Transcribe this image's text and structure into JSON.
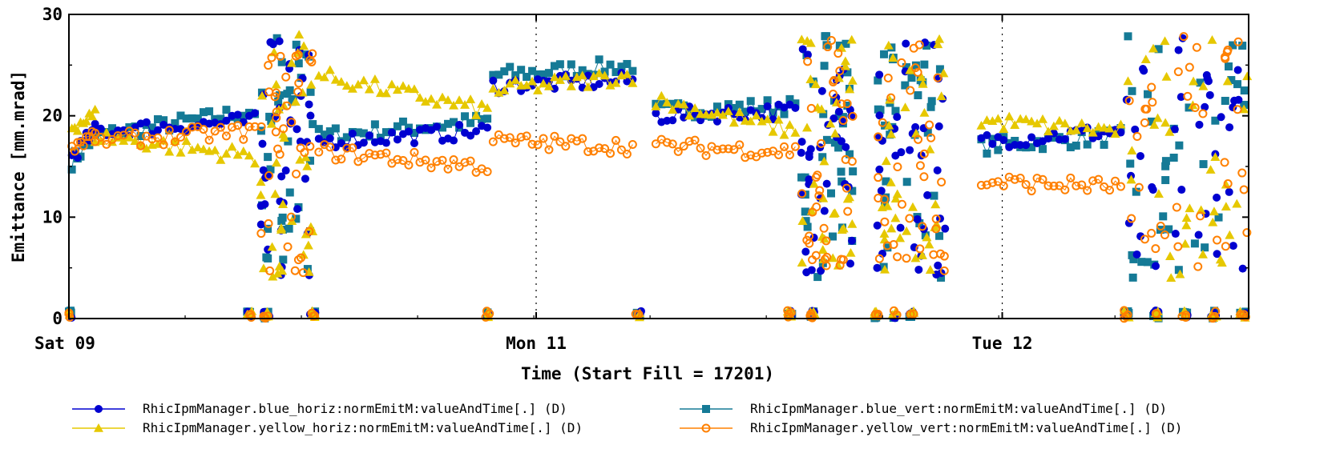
{
  "chart_data": {
    "type": "scatter",
    "title": "",
    "xlabel": "Time (Start Fill = 17201)",
    "ylabel": "Emittance [mm.mrad]",
    "ylim": [
      0,
      30
    ],
    "xlim_days": [
      0,
      2.03
    ],
    "yticks": [
      "0",
      "10",
      "20",
      "30"
    ],
    "xticks": [
      {
        "label": "Sat 09",
        "day": 0.0
      },
      {
        "label": "Mon 11",
        "day": 0.804
      },
      {
        "label": "Tue 12",
        "day": 1.606
      }
    ],
    "grid": "vertical dotted at day labels",
    "legend_position": "bottom",
    "series": [
      {
        "name": "RhicIpmManager.blue_horiz:normEmitM:valueAndTime[.] (D)",
        "color": "#0000d0",
        "marker": "circle-filled",
        "segments": [
          [
            0.005,
            0.045,
            16.0,
            18.5
          ],
          [
            0.045,
            0.32,
            18.5,
            19.5
          ],
          [
            0.43,
            0.72,
            17.5,
            18.5
          ],
          [
            0.73,
            0.97,
            23.0,
            23.5
          ],
          [
            1.01,
            1.25,
            20.0,
            20.5
          ],
          [
            1.57,
            1.81,
            17.5,
            18.5
          ]
        ]
      },
      {
        "name": "RhicIpmManager.blue_vert:normEmitM:valueAndTime[.] (D)",
        "color": "#157a96",
        "marker": "square-filled",
        "segments": [
          [
            0.005,
            0.045,
            15.5,
            18.0
          ],
          [
            0.045,
            0.32,
            18.0,
            20.5
          ],
          [
            0.43,
            0.72,
            18.0,
            19.5
          ],
          [
            0.73,
            0.97,
            24.0,
            25.0
          ],
          [
            1.01,
            1.25,
            20.5,
            21.0
          ],
          [
            1.57,
            1.81,
            17.0,
            18.0
          ]
        ]
      },
      {
        "name": "RhicIpmManager.yellow_horiz:normEmitM:valueAndTime[.] (D)",
        "color": "#e6c800",
        "marker": "triangle-filled",
        "segments": [
          [
            0.005,
            0.045,
            19.0,
            20.0
          ],
          [
            0.045,
            0.32,
            18.0,
            16.0
          ],
          [
            0.43,
            0.72,
            24.0,
            20.5
          ],
          [
            0.73,
            0.97,
            22.5,
            24.0
          ],
          [
            1.01,
            1.25,
            21.5,
            18.5
          ],
          [
            1.57,
            1.81,
            19.5,
            18.5
          ]
        ]
      },
      {
        "name": "RhicIpmManager.yellow_vert:normEmitM:valueAndTime[.] (D)",
        "color": "#ff8000",
        "marker": "circle-open",
        "segments": [
          [
            0.005,
            0.045,
            17.0,
            18.0
          ],
          [
            0.045,
            0.32,
            17.5,
            18.5
          ],
          [
            0.43,
            0.72,
            16.5,
            15.0
          ],
          [
            0.73,
            0.97,
            17.5,
            17.0
          ],
          [
            1.01,
            1.25,
            17.0,
            16.5
          ],
          [
            1.57,
            1.81,
            13.5,
            13.0
          ]
        ]
      }
    ],
    "noisy_regions_days": [
      [
        0.33,
        0.42
      ],
      [
        1.26,
        1.35
      ],
      [
        1.39,
        1.51
      ],
      [
        1.82,
        2.03
      ]
    ],
    "dropouts_days": [
      0.0,
      0.31,
      0.34,
      0.42,
      0.72,
      0.98,
      1.24,
      1.28,
      1.39,
      1.42,
      1.45,
      1.82,
      1.87,
      1.92,
      1.97,
      2.02
    ]
  }
}
